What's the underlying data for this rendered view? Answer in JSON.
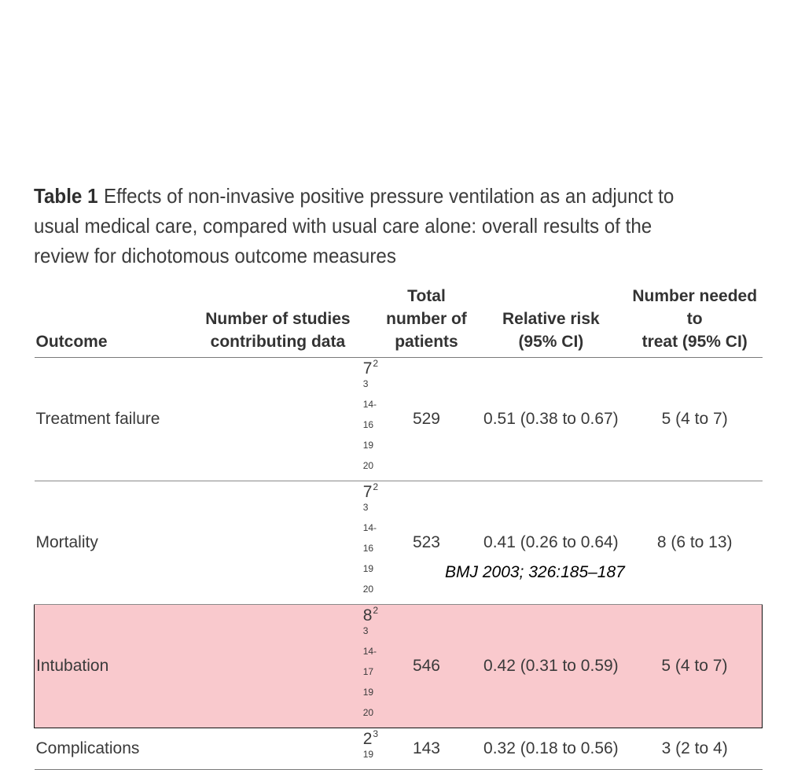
{
  "caption": {
    "label": "Table 1",
    "text": "Effects of non-invasive positive pressure ventilation as an adjunct to usual medical care, compared with usual care alone: overall results of the review for dichotomous outcome measures"
  },
  "table": {
    "headers": [
      [
        "Outcome"
      ],
      [
        "Number of studies",
        "contributing data"
      ],
      [
        "Total number of",
        "patients"
      ],
      [
        "Relative risk",
        "(95% CI)"
      ],
      [
        "Number needed to",
        "treat (95% CI)"
      ]
    ],
    "rows": [
      {
        "outcome": "Treatment failure",
        "studies": "7",
        "refs": "2 3 14-16 19 20",
        "patients": "529",
        "rr": "0.51 (0.38 to 0.67)",
        "nnt": "5 (4 to 7)",
        "highlighted": false
      },
      {
        "outcome": "Mortality",
        "studies": "7",
        "refs": "2 3 14-16 19 20",
        "patients": "523",
        "rr": "0.41 (0.26 to 0.64)",
        "nnt": "8 (6 to 13)",
        "highlighted": false
      },
      {
        "outcome": "Intubation",
        "studies": "8",
        "refs": "2 3 14-17 19 20",
        "patients": "546",
        "rr": "0.42 (0.31 to 0.59)",
        "nnt": "5 (4 to 7)",
        "highlighted": true
      },
      {
        "outcome": "Complications",
        "studies": "2",
        "refs": "3 19",
        "patients": "143",
        "rr": "0.32 (0.18 to 0.56)",
        "nnt": "3 (2 to 4)",
        "highlighted": false
      }
    ]
  },
  "citation": "BMJ 2003; 326:185–187",
  "colors": {
    "highlight": "#f9c9cd",
    "highlight_border": "#111111"
  }
}
